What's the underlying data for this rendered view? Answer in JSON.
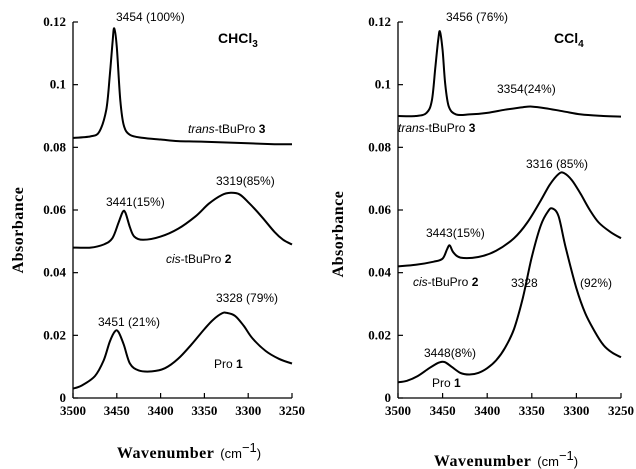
{
  "chart_data": [
    {
      "type": "line",
      "title": "CHCl",
      "title_sub": "3",
      "xlabel": "Wavenumber",
      "xunit": "(cm",
      "xunit_sup": "−1",
      "xunit_close": ")",
      "ylabel": "Absorbance",
      "xlim": [
        3500,
        3250
      ],
      "ylim": [
        0,
        0.12
      ],
      "xticks": [
        "3500",
        "3450",
        "3400",
        "3350",
        "3300",
        "3250"
      ],
      "yticks": [
        "0",
        "0.02",
        "0.04",
        "0.06",
        "0.08",
        "0.1",
        "0.12"
      ],
      "grid": false,
      "series": [
        {
          "label_italic": "trans",
          "label_text": "-tBuPro ",
          "label_bold": "3",
          "peaks": [
            {
              "text": "3454 (100%)"
            }
          ],
          "points": [
            [
              3500,
              0.083
            ],
            [
              3480,
              0.0835
            ],
            [
              3470,
              0.085
            ],
            [
              3462,
              0.092
            ],
            [
              3458,
              0.103
            ],
            [
              3455,
              0.113
            ],
            [
              3453,
              0.118
            ],
            [
              3450,
              0.112
            ],
            [
              3446,
              0.095
            ],
            [
              3442,
              0.087
            ],
            [
              3435,
              0.084
            ],
            [
              3420,
              0.083
            ],
            [
              3400,
              0.0825
            ],
            [
              3380,
              0.082
            ],
            [
              3350,
              0.0818
            ],
            [
              3300,
              0.0813
            ],
            [
              3270,
              0.081
            ],
            [
              3250,
              0.081
            ]
          ]
        },
        {
          "label_italic": "cis",
          "label_text": "-tBuPro ",
          "label_bold": "2",
          "peaks": [
            {
              "text": "3441(15%)"
            },
            {
              "text": "3319(85%)"
            }
          ],
          "points": [
            [
              3500,
              0.048
            ],
            [
              3480,
              0.048
            ],
            [
              3465,
              0.049
            ],
            [
              3455,
              0.051
            ],
            [
              3448,
              0.056
            ],
            [
              3443,
              0.0595
            ],
            [
              3440,
              0.059
            ],
            [
              3435,
              0.0545
            ],
            [
              3430,
              0.0515
            ],
            [
              3420,
              0.0505
            ],
            [
              3400,
              0.0515
            ],
            [
              3380,
              0.054
            ],
            [
              3360,
              0.058
            ],
            [
              3345,
              0.062
            ],
            [
              3330,
              0.0648
            ],
            [
              3320,
              0.0655
            ],
            [
              3310,
              0.065
            ],
            [
              3300,
              0.0625
            ],
            [
              3285,
              0.058
            ],
            [
              3270,
              0.053
            ],
            [
              3260,
              0.0505
            ],
            [
              3250,
              0.049
            ]
          ]
        },
        {
          "label_text": "Pro ",
          "label_bold": "1",
          "peaks": [
            {
              "text": "3451 (21%)"
            },
            {
              "text": "3328 (79%)"
            }
          ],
          "points": [
            [
              3500,
              0.003
            ],
            [
              3490,
              0.004
            ],
            [
              3475,
              0.007
            ],
            [
              3465,
              0.012
            ],
            [
              3458,
              0.018
            ],
            [
              3452,
              0.0213
            ],
            [
              3448,
              0.021
            ],
            [
              3442,
              0.017
            ],
            [
              3435,
              0.011
            ],
            [
              3425,
              0.0088
            ],
            [
              3410,
              0.0085
            ],
            [
              3395,
              0.0095
            ],
            [
              3380,
              0.0125
            ],
            [
              3365,
              0.017
            ],
            [
              3350,
              0.022
            ],
            [
              3340,
              0.025
            ],
            [
              3330,
              0.027
            ],
            [
              3325,
              0.0272
            ],
            [
              3315,
              0.0262
            ],
            [
              3305,
              0.023
            ],
            [
              3295,
              0.019
            ],
            [
              3280,
              0.015
            ],
            [
              3265,
              0.0125
            ],
            [
              3250,
              0.011
            ]
          ]
        }
      ]
    },
    {
      "type": "line",
      "title": "CCl",
      "title_sub": "4",
      "xlabel": "Wavenumber",
      "xunit": "(cm",
      "xunit_sup": "−1",
      "xunit_close": ")",
      "ylabel": "Absorbance",
      "xlim": [
        3500,
        3250
      ],
      "ylim": [
        0,
        0.12
      ],
      "xticks": [
        "3500",
        "3450",
        "3400",
        "3350",
        "3300",
        "3250"
      ],
      "yticks": [
        "0",
        "0.02",
        "0.04",
        "0.06",
        "0.08",
        "0.1",
        "0.12"
      ],
      "grid": false,
      "series": [
        {
          "label_italic": "trans",
          "label_text": "-tBuPro ",
          "label_bold": "3",
          "peaks": [
            {
              "text": "3456 (76%)"
            },
            {
              "text": "3354(24%)"
            }
          ],
          "points": [
            [
              3500,
              0.09
            ],
            [
              3480,
              0.09
            ],
            [
              3468,
              0.091
            ],
            [
              3462,
              0.095
            ],
            [
              3458,
              0.106
            ],
            [
              3455,
              0.114
            ],
            [
              3453,
              0.117
            ],
            [
              3450,
              0.111
            ],
            [
              3447,
              0.1
            ],
            [
              3443,
              0.093
            ],
            [
              3435,
              0.0905
            ],
            [
              3420,
              0.0905
            ],
            [
              3400,
              0.091
            ],
            [
              3380,
              0.092
            ],
            [
              3360,
              0.0928
            ],
            [
              3350,
              0.093
            ],
            [
              3335,
              0.0925
            ],
            [
              3315,
              0.0915
            ],
            [
              3295,
              0.0905
            ],
            [
              3270,
              0.09
            ],
            [
              3250,
              0.0898
            ]
          ]
        },
        {
          "label_italic": "cis",
          "label_text": "-tBuPro ",
          "label_bold": "2",
          "peaks": [
            {
              "text": "3443(15%)"
            },
            {
              "text": "3316 (85%)"
            }
          ],
          "points": [
            [
              3500,
              0.042
            ],
            [
              3480,
              0.0425
            ],
            [
              3460,
              0.0435
            ],
            [
              3450,
              0.0445
            ],
            [
              3445,
              0.0475
            ],
            [
              3442,
              0.0487
            ],
            [
              3438,
              0.0465
            ],
            [
              3430,
              0.0448
            ],
            [
              3410,
              0.045
            ],
            [
              3390,
              0.047
            ],
            [
              3370,
              0.051
            ],
            [
              3355,
              0.056
            ],
            [
              3340,
              0.063
            ],
            [
              3330,
              0.068
            ],
            [
              3320,
              0.0715
            ],
            [
              3314,
              0.0718
            ],
            [
              3305,
              0.0695
            ],
            [
              3295,
              0.065
            ],
            [
              3285,
              0.06
            ],
            [
              3275,
              0.056
            ],
            [
              3262,
              0.053
            ],
            [
              3250,
              0.051
            ]
          ]
        },
        {
          "label_text": "Pro ",
          "label_bold": "1",
          "peaks": [
            {
              "text": "3448(8%)"
            },
            {
              "text": "3328"
            },
            {
              "text": "(92%)"
            }
          ],
          "points": [
            [
              3500,
              0.005
            ],
            [
              3490,
              0.0055
            ],
            [
              3478,
              0.007
            ],
            [
              3465,
              0.0095
            ],
            [
              3455,
              0.0112
            ],
            [
              3448,
              0.0115
            ],
            [
              3440,
              0.01
            ],
            [
              3430,
              0.008
            ],
            [
              3420,
              0.0075
            ],
            [
              3410,
              0.008
            ],
            [
              3400,
              0.0095
            ],
            [
              3390,
              0.012
            ],
            [
              3380,
              0.016
            ],
            [
              3370,
              0.022
            ],
            [
              3360,
              0.032
            ],
            [
              3350,
              0.045
            ],
            [
              3340,
              0.055
            ],
            [
              3332,
              0.0595
            ],
            [
              3327,
              0.0605
            ],
            [
              3320,
              0.058
            ],
            [
              3312,
              0.048
            ],
            [
              3300,
              0.035
            ],
            [
              3290,
              0.027
            ],
            [
              3280,
              0.0215
            ],
            [
              3270,
              0.017
            ],
            [
              3260,
              0.0145
            ],
            [
              3250,
              0.013
            ]
          ]
        }
      ]
    }
  ]
}
